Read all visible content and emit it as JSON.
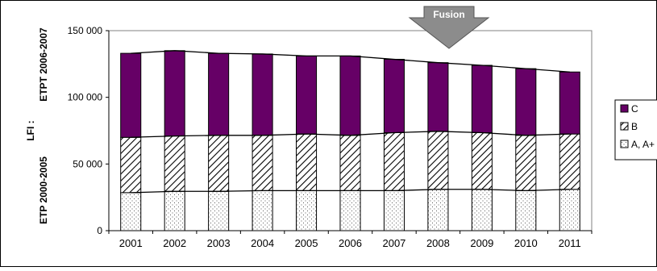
{
  "chart_data": {
    "type": "bar",
    "stacked": true,
    "categories": [
      "2001",
      "2002",
      "2003",
      "2004",
      "2005",
      "2006",
      "2007",
      "2008",
      "2009",
      "2010",
      "2011"
    ],
    "series": [
      {
        "name": "A, A+",
        "values": [
          28500,
          29500,
          29500,
          30000,
          30000,
          30000,
          30000,
          31000,
          31000,
          30000,
          31000
        ],
        "color": "#ffffff",
        "pattern": "dots"
      },
      {
        "name": "B",
        "values": [
          41500,
          41500,
          42000,
          41500,
          42500,
          41500,
          43500,
          43500,
          42500,
          41500,
          41500
        ],
        "color": "#ffffff",
        "pattern": "diagonal-hatch"
      },
      {
        "name": "C",
        "values": [
          63000,
          64000,
          61500,
          61000,
          58500,
          59500,
          55000,
          51500,
          50500,
          50000,
          46500
        ],
        "color": "#660066",
        "pattern": "solid"
      }
    ],
    "ylim": [
      0,
      150000
    ],
    "yticks": [
      0,
      50000,
      100000,
      150000
    ],
    "ytick_labels": [
      "0",
      "50 000",
      "100 000",
      "150 000"
    ],
    "ylabel_lines": [
      "LFI :",
      "ETP 2000-2005",
      "ETPT 2006-2007"
    ],
    "annotation": "Fusion",
    "legend_position": "right",
    "grid": false
  }
}
